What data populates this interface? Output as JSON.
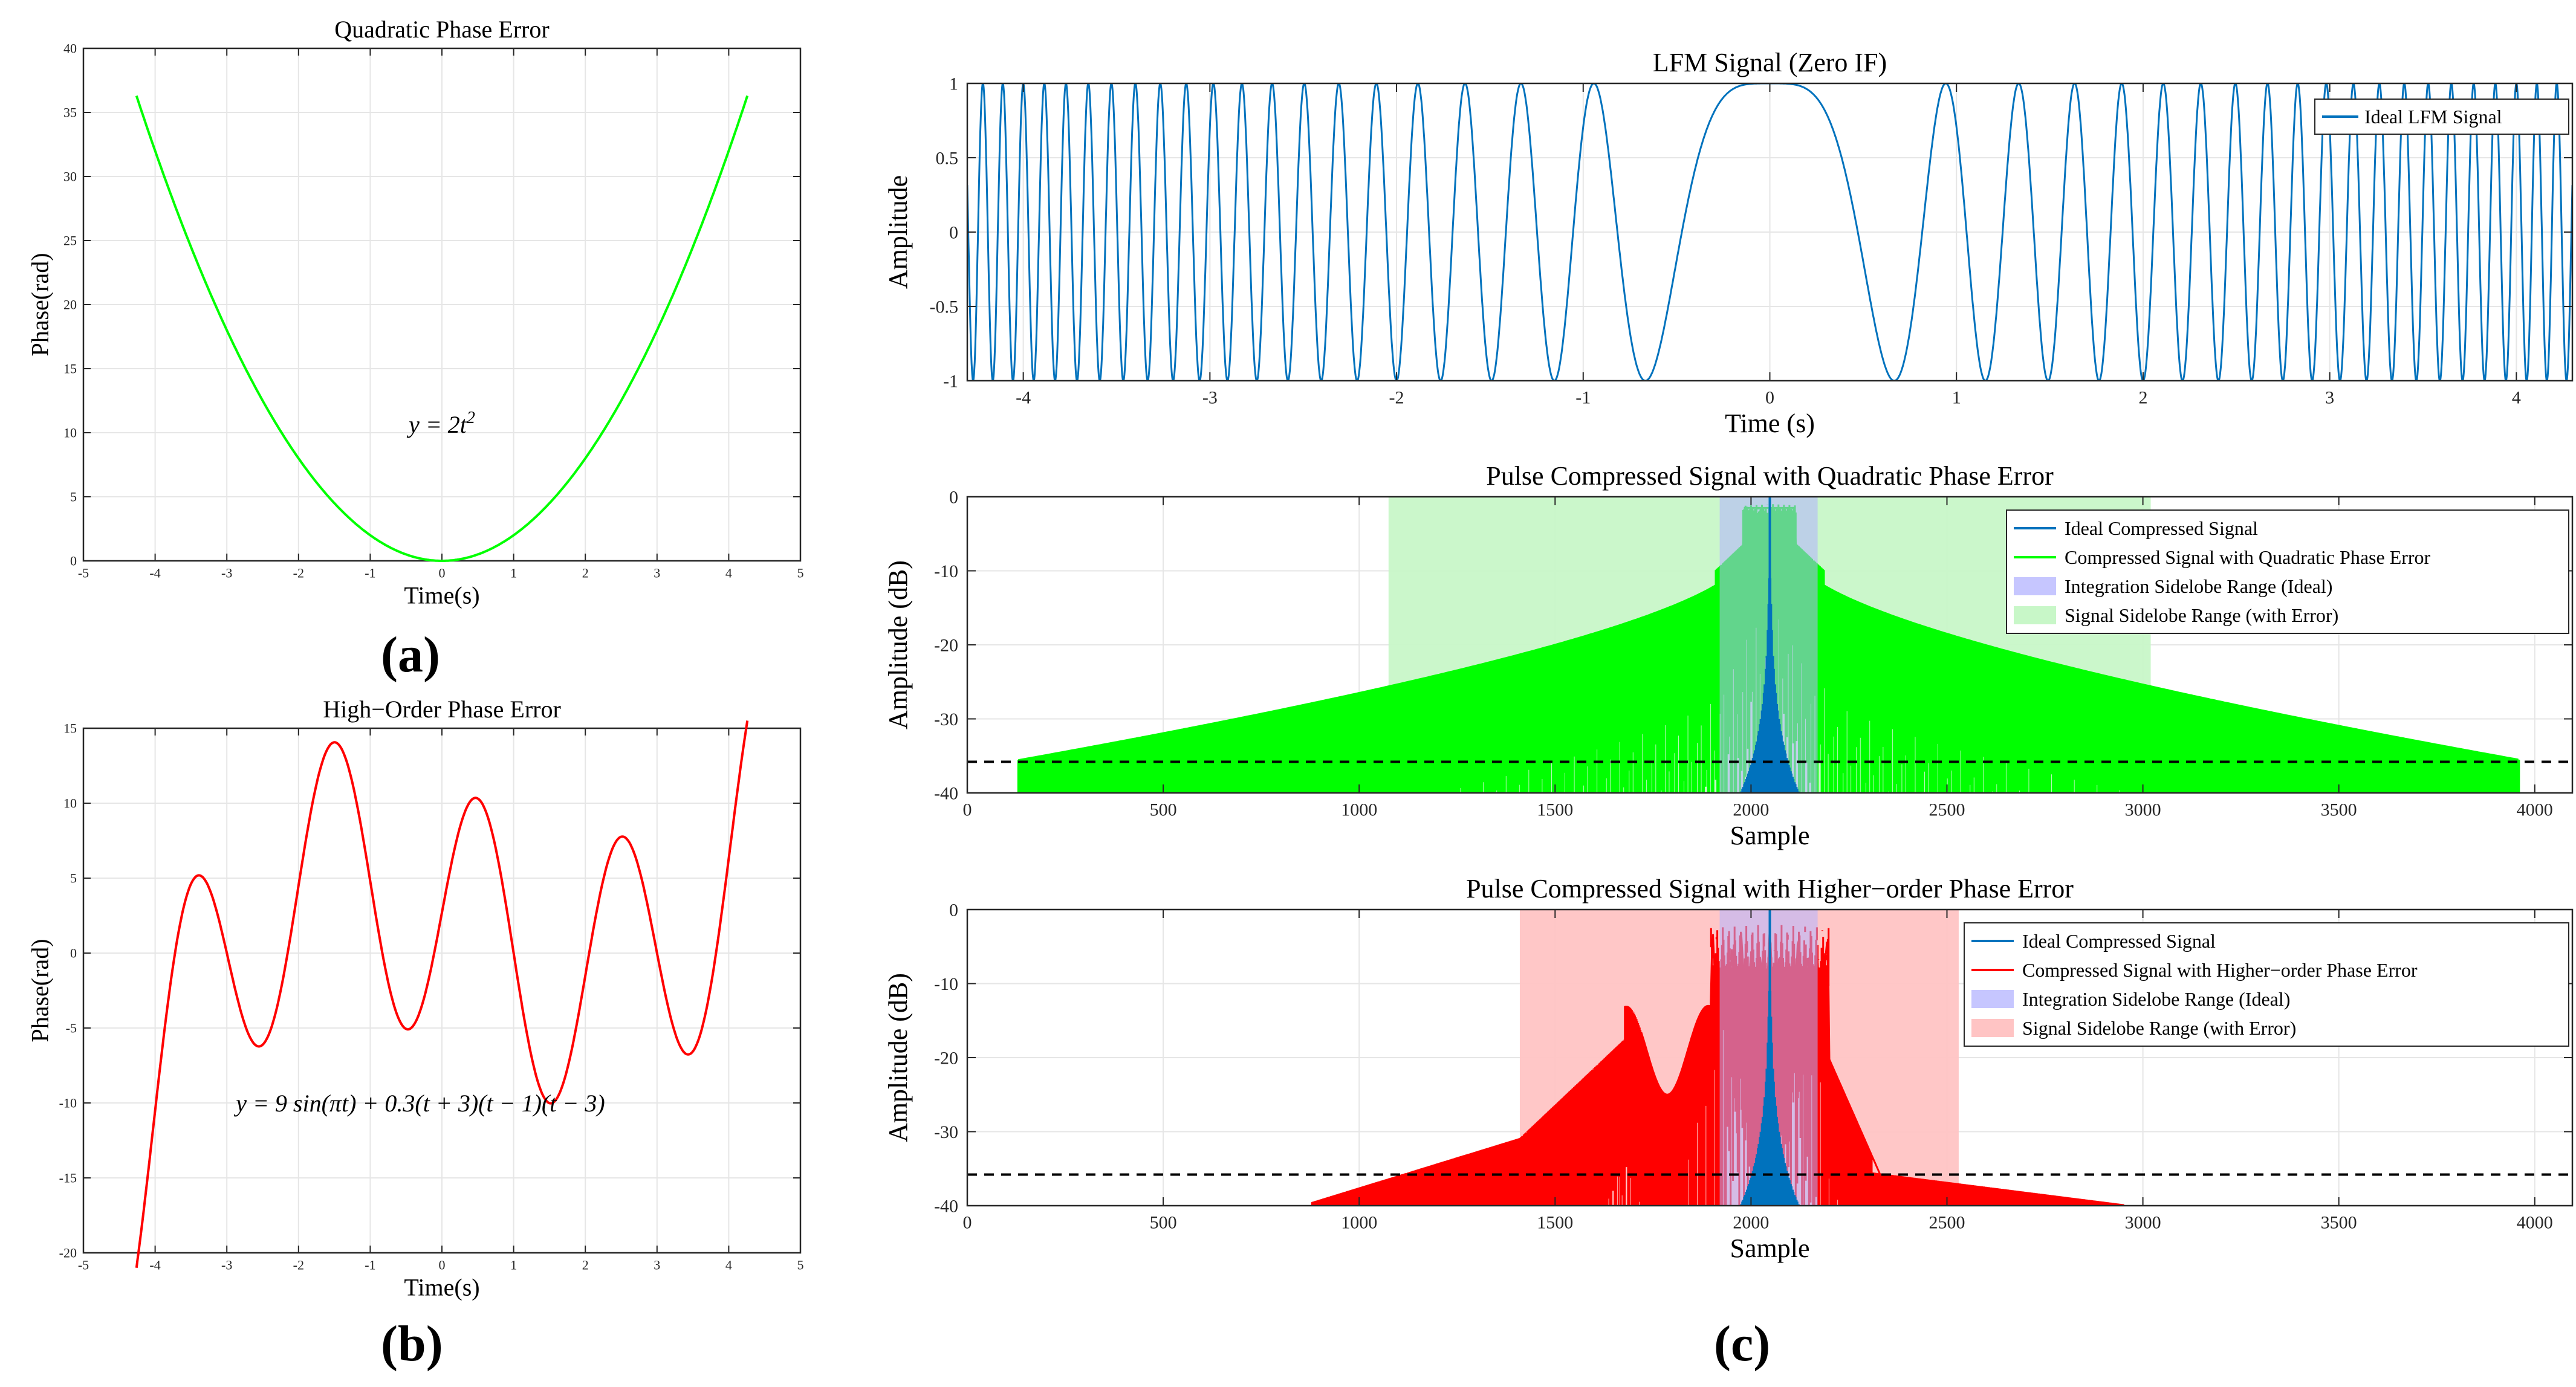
{
  "panel_labels": {
    "a": "(a)",
    "b": "(b)",
    "c": "(c)"
  },
  "chart_data": [
    {
      "id": "quad",
      "type": "line",
      "title": "Quadratic Phase Error",
      "xlabel": "Time(s)",
      "ylabel": "Phase(rad)",
      "xlim": [
        -5,
        5
      ],
      "ylim": [
        0,
        40
      ],
      "xticks": [
        -5,
        -4,
        -3,
        -2,
        -1,
        0,
        1,
        2,
        3,
        4,
        5
      ],
      "yticks": [
        0,
        5,
        10,
        15,
        20,
        25,
        30,
        35,
        40
      ],
      "grid": true,
      "series": [
        {
          "name": "y = 2t^2",
          "color": "#00ff00",
          "formula": "2*t^2",
          "t_range": [
            -4.26,
            4.26
          ]
        }
      ],
      "annotation": {
        "label": "y = 2t^2",
        "x": 0,
        "y": 10
      }
    },
    {
      "id": "high",
      "type": "line",
      "title": "High−Order Phase Error",
      "xlabel": "Time(s)",
      "ylabel": "Phase(rad)",
      "xlim": [
        -5,
        5
      ],
      "ylim": [
        -20,
        15
      ],
      "xticks": [
        -5,
        -4,
        -3,
        -2,
        -1,
        0,
        1,
        2,
        3,
        4,
        5
      ],
      "yticks": [
        -20,
        -15,
        -10,
        -5,
        0,
        5,
        10,
        15
      ],
      "grid": true,
      "series": [
        {
          "name": "y = 9sin(πt) + 0.3(t+3)(t−1)(t−3)",
          "color": "#ff0000",
          "formula": "9*sin(pi*t)+0.3*(t+3)*(t-1)*(t-3)",
          "t_range": [
            -4.26,
            4.26
          ]
        }
      ],
      "annotation": {
        "label": "y = 9 sin(πt) + 0.3(t + 3)(t − 1)(t − 3)",
        "x": -0.3,
        "y": -10
      }
    },
    {
      "id": "lfm",
      "type": "line",
      "title": "LFM Signal (Zero IF)",
      "xlabel": "Time (s)",
      "ylabel": "Amplitude",
      "xlim": [
        -4.3,
        4.3
      ],
      "ylim": [
        -1,
        1
      ],
      "xticks": [
        -4,
        -3,
        -2,
        -1,
        0,
        1,
        2,
        3,
        4
      ],
      "yticks": [
        -1,
        -0.5,
        0,
        0.5,
        1
      ],
      "ytick_labels": [
        "-1",
        "-0.5",
        "0",
        "0.5",
        "1"
      ],
      "grid": true,
      "legend": "top-right",
      "series": [
        {
          "name": "Ideal LFM Signal",
          "color": "#0072bd",
          "formula": "cos(2.25*pi*t^2)",
          "t_range": [
            -4.3,
            4.3
          ]
        }
      ]
    },
    {
      "id": "pc_quad",
      "type": "area",
      "title": "Pulse Compressed Signal with Quadratic Phase Error",
      "xlabel": "Sample",
      "ylabel": "Amplitude (dB)",
      "xlim": [
        0,
        4096
      ],
      "ylim": [
        -40,
        0
      ],
      "xticks": [
        0,
        500,
        1000,
        1500,
        2000,
        2500,
        3000,
        3500,
        4000
      ],
      "yticks": [
        -40,
        -30,
        -20,
        -10,
        0
      ],
      "grid": true,
      "legend": "top-right",
      "threshold_db": -35.8,
      "peak_sample": 2048,
      "series": [
        {
          "name": "Ideal Compressed Signal",
          "color": "#0072bd",
          "half_width_at_floor": 260,
          "top_db": 0
        },
        {
          "name": "Compressed Signal with Quadratic Phase Error",
          "color": "#00ff00",
          "start": 130,
          "end": 3960,
          "flat_top": [
            1980,
            2115
          ],
          "top_db": -1
        },
        {
          "name": "Integration Sidelobe Range (Ideal)",
          "color": "#b3b3ff",
          "range": [
            1920,
            2170
          ]
        },
        {
          "name": "Signal Sidelobe Range (with Error)",
          "color": "#c8f7c8",
          "range": [
            1075,
            3020
          ]
        }
      ]
    },
    {
      "id": "pc_high",
      "type": "area",
      "title": "Pulse Compressed Signal with Higher−order Phase Error",
      "xlabel": "Sample",
      "ylabel": "Amplitude (dB)",
      "xlim": [
        0,
        4096
      ],
      "ylim": [
        -40,
        0
      ],
      "xticks": [
        0,
        500,
        1000,
        1500,
        2000,
        2500,
        3000,
        3500,
        4000
      ],
      "yticks": [
        -40,
        -30,
        -20,
        -10,
        0
      ],
      "grid": true,
      "legend": "top-right",
      "threshold_db": -35.8,
      "peak_sample": 2048,
      "series": [
        {
          "name": "Ideal Compressed Signal",
          "color": "#0072bd",
          "half_width_at_floor": 260,
          "top_db": 0
        },
        {
          "name": "Compressed Signal with Higher−order Phase Error",
          "color": "#ff0000",
          "start": 880,
          "end": 2950,
          "top_db": 0
        },
        {
          "name": "Integration Sidelobe Range (Ideal)",
          "color": "#b3b3ff",
          "range": [
            1920,
            2170
          ]
        },
        {
          "name": "Signal Sidelobe Range (with Error)",
          "color": "#ffc4c4",
          "range": [
            1410,
            2530
          ]
        }
      ]
    }
  ]
}
